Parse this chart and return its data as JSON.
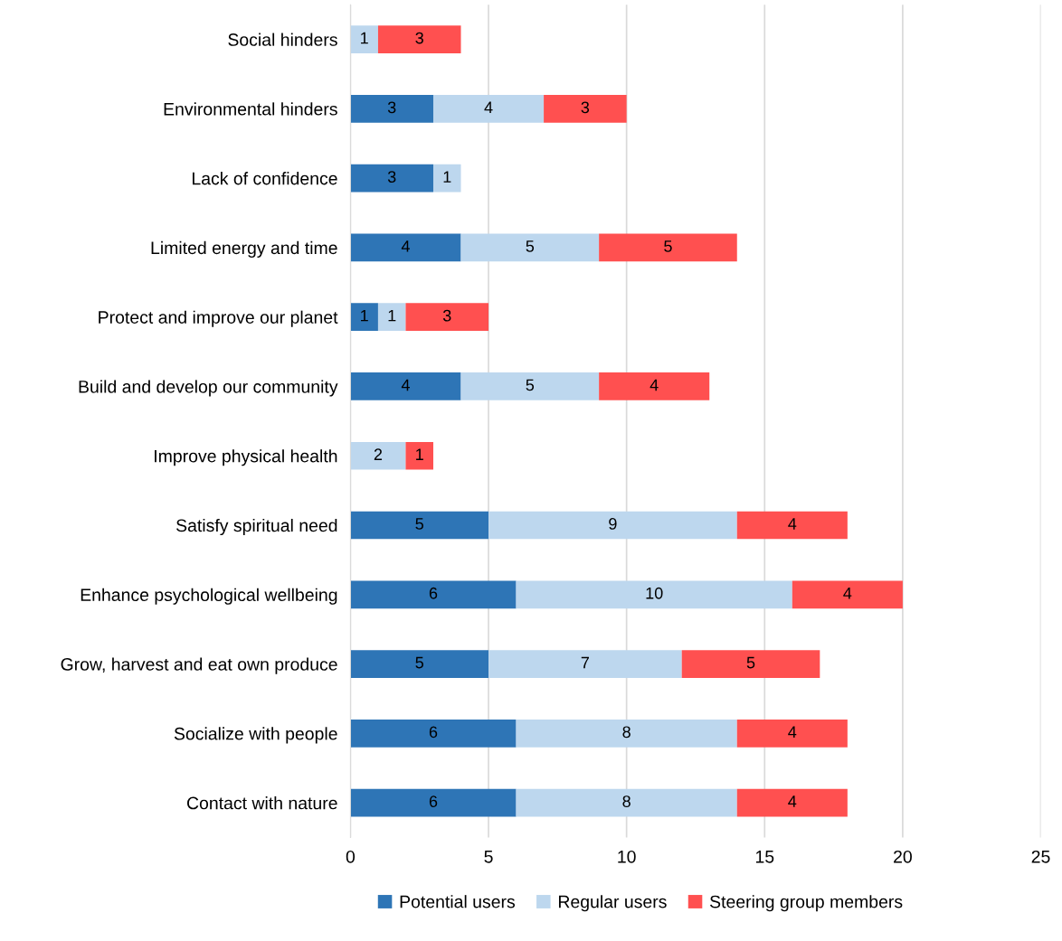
{
  "chart_data": {
    "type": "bar",
    "orientation": "horizontal",
    "stacked": true,
    "data_labels": true,
    "grid": "x",
    "legend": "bottom",
    "categories": [
      "Social hinders",
      "Environmental hinders",
      "Lack of confidence",
      "Limited energy and time",
      "Protect and improve our planet",
      "Build and develop our community",
      "Improve physical health",
      "Satisfy spiritual need",
      "Enhance psychological wellbeing",
      "Grow, harvest and eat own produce",
      "Socialize with people",
      "Contact with nature"
    ],
    "series": [
      {
        "name": "Potential users",
        "color": "#2e75b6",
        "values": [
          null,
          3,
          3,
          4,
          1,
          4,
          null,
          5,
          6,
          5,
          6,
          6
        ]
      },
      {
        "name": "Regular users",
        "color": "#bdd7ee",
        "values": [
          1,
          4,
          1,
          5,
          1,
          5,
          2,
          9,
          10,
          7,
          8,
          8
        ]
      },
      {
        "name": "Steering group members",
        "color": "#ff5050",
        "values": [
          3,
          3,
          null,
          5,
          3,
          4,
          1,
          4,
          4,
          5,
          4,
          4
        ]
      }
    ],
    "xlim": [
      0,
      25
    ],
    "xticks": [
      0,
      5,
      10,
      15,
      20,
      25
    ]
  }
}
